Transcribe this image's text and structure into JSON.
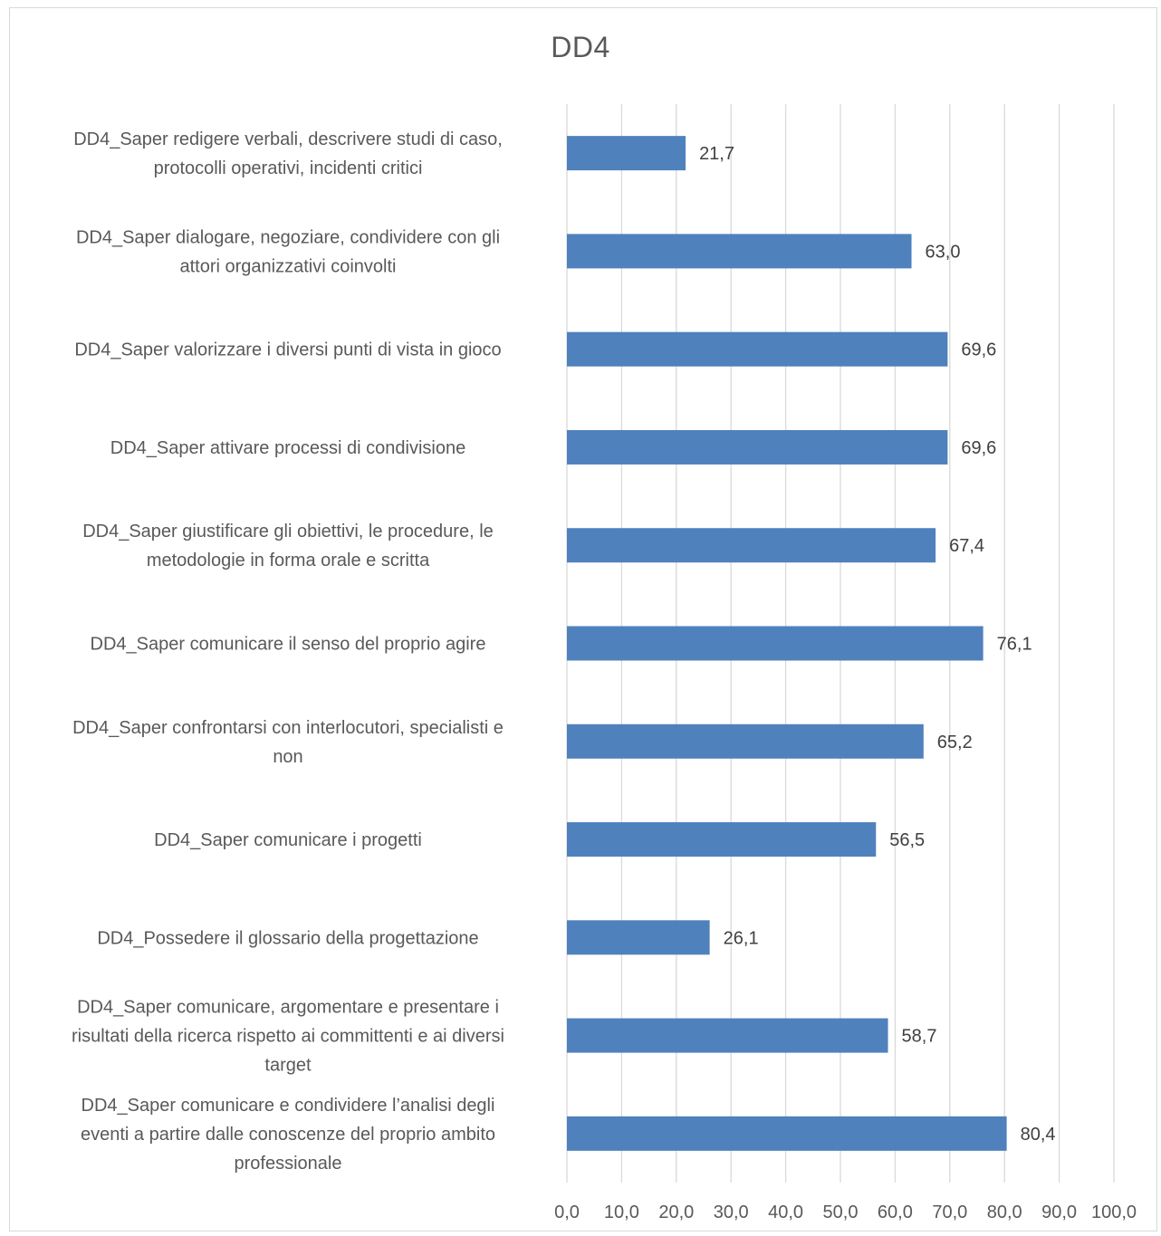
{
  "chart_data": {
    "type": "bar",
    "orientation": "horizontal",
    "title": "DD4",
    "xlabel": "",
    "ylabel": "",
    "xlim": [
      0,
      100
    ],
    "x_ticks": [
      "0,0",
      "10,0",
      "20,0",
      "30,0",
      "40,0",
      "50,0",
      "60,0",
      "70,0",
      "80,0",
      "90,0",
      "100,0"
    ],
    "grid": "vertical",
    "legend": "none",
    "bar_color": "#4f81bd",
    "categories": [
      [
        "DD4_Saper redigere verbali, descrivere studi di caso,",
        "protocolli operativi, incidenti critici"
      ],
      [
        "DD4_Saper dialogare, negoziare, condividere con gli",
        "attori organizzativi coinvolti"
      ],
      [
        "DD4_Saper valorizzare i diversi punti di vista in gioco"
      ],
      [
        "DD4_Saper attivare processi di condivisione"
      ],
      [
        "DD4_Saper giustificare gli obiettivi, le procedure, le",
        "metodologie in forma orale e scritta"
      ],
      [
        "DD4_Saper comunicare il senso del proprio agire"
      ],
      [
        "DD4_Saper confrontarsi con interlocutori, specialisti e",
        "non"
      ],
      [
        "DD4_Saper comunicare i progetti"
      ],
      [
        "DD4_Possedere il glossario della progettazione"
      ],
      [
        "DD4_Saper comunicare, argomentare e presentare i",
        "risultati della ricerca rispetto ai committenti e ai diversi",
        "target"
      ],
      [
        "DD4_Saper comunicare e condividere l’analisi degli",
        "eventi a partire dalle conoscenze del proprio ambito",
        "professionale"
      ]
    ],
    "values": [
      21.7,
      63.0,
      69.6,
      69.6,
      67.4,
      76.1,
      65.2,
      56.5,
      26.1,
      58.7,
      80.4
    ],
    "value_labels": [
      "21,7",
      "63,0",
      "69,6",
      "69,6",
      "67,4",
      "76,1",
      "65,2",
      "56,5",
      "26,1",
      "58,7",
      "80,4"
    ]
  }
}
